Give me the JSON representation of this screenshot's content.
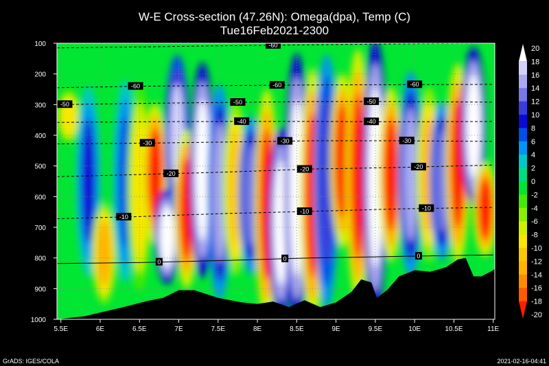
{
  "chart_data": {
    "type": "heatmap",
    "title": "W-E Cross-section (47.26N): Omega(dpa), Temp (C)",
    "subtitle": "Tue16Feb2021-2300",
    "x_ticks": [
      "5.5E",
      "6E",
      "6.5E",
      "7E",
      "7.5E",
      "8E",
      "8.5E",
      "9E",
      "9.5E",
      "10E",
      "10.5E",
      "11E"
    ],
    "x_values": [
      5.5,
      6,
      6.5,
      7,
      7.5,
      8,
      8.5,
      9,
      9.5,
      10,
      10.5,
      11
    ],
    "xlim": [
      5.45,
      11.02
    ],
    "y_ticks": [
      "100",
      "200",
      "300",
      "400",
      "500",
      "600",
      "700",
      "800",
      "900",
      "1000"
    ],
    "y_values": [
      100,
      200,
      300,
      400,
      500,
      600,
      700,
      800,
      900,
      1000
    ],
    "ylim": [
      100,
      1000
    ],
    "colorbar_levels": [
      "20",
      "18",
      "16",
      "14",
      "12",
      "10",
      "8",
      "6",
      "4",
      "2",
      "0",
      "-2",
      "-4",
      "-6",
      "-8",
      "-10",
      "-12",
      "-14",
      "-16",
      "-18",
      "-20"
    ],
    "colorbar_colors": [
      "#ffffff",
      "#d3d3fa",
      "#aaaaf0",
      "#7878e6",
      "#3c3cdc",
      "#0a0ad2",
      "#0050e6",
      "#0096f0",
      "#00c8c8",
      "#00dc82",
      "#00e632",
      "#46eb00",
      "#8cf000",
      "#d2f000",
      "#fae600",
      "#fac800",
      "#ffb400",
      "#ff8c00",
      "#ff5a00",
      "#ff1e00"
    ],
    "omega_columns": [
      {
        "lon": 5.6,
        "vmin": 0.18,
        "vmax": 0.35,
        "v": -10
      },
      {
        "lon": 5.85,
        "vmin": 0.2,
        "vmax": 0.8,
        "v": 8
      },
      {
        "lon": 6.05,
        "vmin": 0.6,
        "vmax": 0.92,
        "v": -14
      },
      {
        "lon": 6.32,
        "vmin": 0.18,
        "vmax": 0.82,
        "v": 6
      },
      {
        "lon": 6.5,
        "vmin": 0.2,
        "vmax": 0.85,
        "v": -10
      },
      {
        "lon": 6.7,
        "vmin": 0.25,
        "vmax": 0.7,
        "v": -20
      },
      {
        "lon": 6.85,
        "vmin": 0.55,
        "vmax": 0.85,
        "v": 20
      },
      {
        "lon": 6.98,
        "vmin": 0.08,
        "vmax": 0.6,
        "v": 16
      },
      {
        "lon": 7.1,
        "vmin": 0.35,
        "vmax": 0.85,
        "v": -20
      },
      {
        "lon": 7.3,
        "vmin": 0.12,
        "vmax": 0.8,
        "v": 20
      },
      {
        "lon": 7.52,
        "vmin": 0.2,
        "vmax": 0.88,
        "v": 14
      },
      {
        "lon": 7.72,
        "vmin": 0.25,
        "vmax": 0.8,
        "v": -12
      },
      {
        "lon": 7.92,
        "vmin": 0.3,
        "vmax": 0.8,
        "v": 12
      },
      {
        "lon": 8.12,
        "vmin": 0.22,
        "vmax": 0.95,
        "v": -20
      },
      {
        "lon": 8.3,
        "vmin": 0.35,
        "vmax": 0.95,
        "v": 20
      },
      {
        "lon": 8.5,
        "vmin": 0.1,
        "vmax": 0.95,
        "v": 20
      },
      {
        "lon": 8.7,
        "vmin": 0.15,
        "vmax": 0.95,
        "v": -20
      },
      {
        "lon": 8.88,
        "vmin": 0.1,
        "vmax": 0.9,
        "v": 10
      },
      {
        "lon": 9.08,
        "vmin": 0.15,
        "vmax": 0.7,
        "v": -20
      },
      {
        "lon": 9.28,
        "vmin": 0.08,
        "vmax": 0.88,
        "v": -20
      },
      {
        "lon": 9.5,
        "vmin": 0.05,
        "vmax": 0.92,
        "v": 20
      },
      {
        "lon": 9.7,
        "vmin": 0.2,
        "vmax": 0.75,
        "v": -20
      },
      {
        "lon": 9.95,
        "vmin": 0.15,
        "vmax": 0.8,
        "v": 14
      },
      {
        "lon": 10.18,
        "vmin": 0.2,
        "vmax": 0.75,
        "v": -14
      },
      {
        "lon": 10.35,
        "vmin": 0.25,
        "vmax": 0.75,
        "v": 12
      },
      {
        "lon": 10.55,
        "vmin": 0.12,
        "vmax": 0.75,
        "v": -20
      },
      {
        "lon": 10.75,
        "vmin": 0.05,
        "vmax": 0.55,
        "v": 20
      },
      {
        "lon": 10.9,
        "vmin": 0.45,
        "vmax": 0.75,
        "v": -20
      }
    ],
    "terrain_lon": [
      5.45,
      5.8,
      6.0,
      6.3,
      6.6,
      6.8,
      7.0,
      7.2,
      7.5,
      7.8,
      8.0,
      8.2,
      8.4,
      8.6,
      8.8,
      9.0,
      9.2,
      9.32,
      9.45,
      9.52,
      9.65,
      9.8,
      10.0,
      10.2,
      10.4,
      10.55,
      10.65,
      10.75,
      10.85,
      11.0,
      11.02
    ],
    "terrain_p": [
      1000,
      990,
      978,
      960,
      940,
      930,
      905,
      905,
      930,
      945,
      950,
      942,
      960,
      938,
      960,
      945,
      910,
      870,
      880,
      930,
      905,
      860,
      840,
      845,
      830,
      805,
      800,
      860,
      860,
      840,
      835
    ],
    "isotherms": [
      {
        "label": "-60",
        "p": [
          115,
          112,
          108,
          105,
          102,
          100
        ],
        "label_lon": [
          8.2
        ]
      },
      {
        "label": "-60",
        "p": [
          245,
          240,
          238,
          236,
          235,
          234
        ],
        "label_lon": [
          6.45,
          8.25,
          10.0
        ]
      },
      {
        "label": "-50",
        "p": [
          300,
          296,
          293,
          290,
          290,
          292
        ],
        "label_lon": [
          5.55,
          7.75,
          9.45
        ]
      },
      {
        "label": "-40",
        "p": [
          358,
          356,
          355,
          355,
          356,
          355
        ],
        "label_lon": [
          7.8,
          9.45
        ]
      },
      {
        "label": "-30",
        "p": [
          428,
          426,
          422,
          418,
          418,
          420
        ],
        "label_lon": [
          6.6,
          8.35,
          9.9
        ]
      },
      {
        "label": "-20",
        "p": [
          535,
          528,
          520,
          510,
          505,
          497
        ],
        "label_lon": [
          6.9,
          8.6,
          10.05
        ]
      },
      {
        "label": "-10",
        "p": [
          672,
          665,
          655,
          648,
          640,
          635
        ],
        "label_lon": [
          6.3,
          8.6,
          10.15
        ]
      },
      {
        "label": "0",
        "p": [
          818,
          815,
          808,
          800,
          795,
          790
        ],
        "label_lon": [
          6.75,
          8.35,
          10.05
        ]
      }
    ],
    "isotherm_lon": [
      5.45,
      6.5,
      7.6,
      8.7,
      9.8,
      11.0
    ],
    "footer_left": "GrADS: IGES/COLA",
    "footer_right": "2021-02-16-04:41"
  }
}
